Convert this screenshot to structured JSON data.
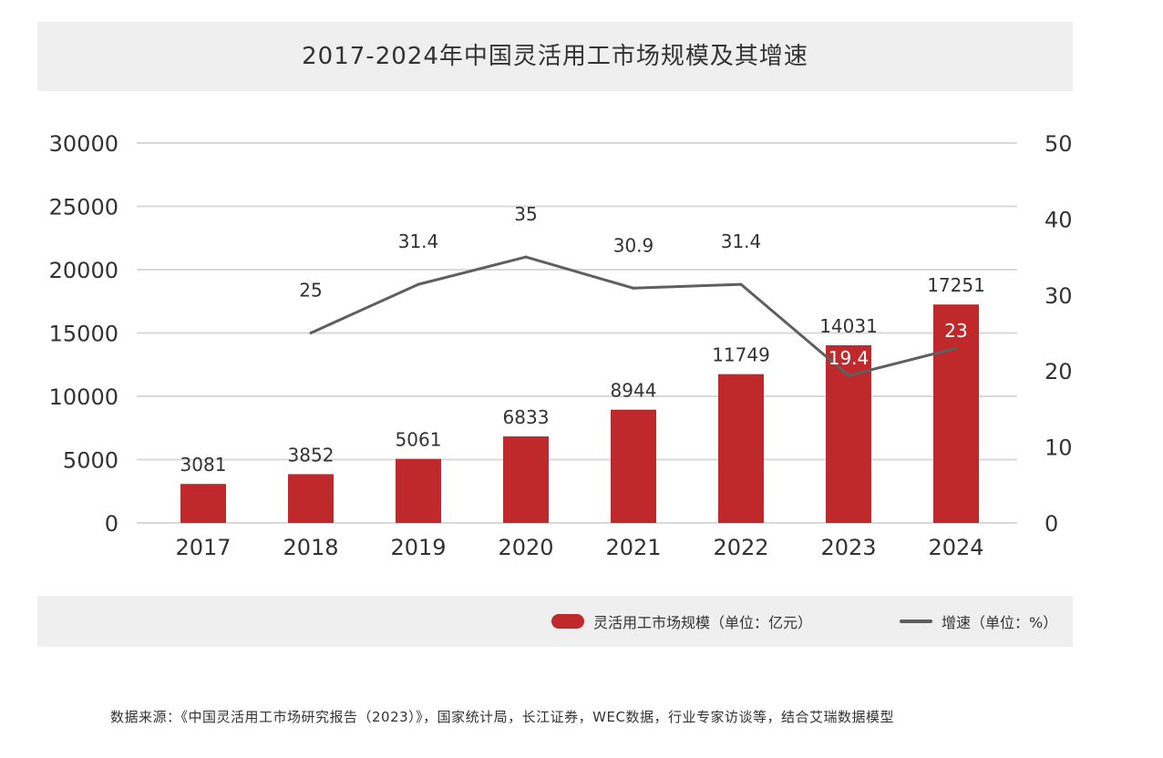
{
  "colors": {
    "bar": "#c0292b",
    "line": "#5f5f5f",
    "grid": "#d9d9d9",
    "text": "#333333",
    "header_bg": "#efefef"
  },
  "chart_data": {
    "type": "bar",
    "title": "2017-2024年中国灵活用工市场规模及其增速",
    "categories": [
      "2017",
      "2018",
      "2019",
      "2020",
      "2021",
      "2022",
      "2023",
      "2024"
    ],
    "series": [
      {
        "name": "灵活用工市场规模（单位：亿元）",
        "type": "bar",
        "axis": "left",
        "values": [
          3081,
          3852,
          5061,
          6833,
          8944,
          11749,
          14031,
          17251
        ]
      },
      {
        "name": "增速（单位：%）",
        "type": "line",
        "axis": "right",
        "values": [
          null,
          25,
          31.4,
          35,
          30.9,
          31.4,
          19.4,
          23
        ]
      }
    ],
    "bar_labels": [
      "3081",
      "3852",
      "5061",
      "6833",
      "8944",
      "11749",
      "14031",
      "17251"
    ],
    "line_labels": [
      "",
      "25",
      "31.4",
      "35",
      "30.9",
      "31.4",
      "19.4",
      "23"
    ],
    "y_left": {
      "ylim": [
        0,
        30000
      ],
      "ticks": [
        "0",
        "5000",
        "10000",
        "15000",
        "20000",
        "25000",
        "30000"
      ]
    },
    "y_right": {
      "ylim": [
        0,
        50
      ],
      "ticks": [
        "0",
        "10",
        "20",
        "30",
        "40",
        "50"
      ]
    },
    "grid": true,
    "legend": "bottom-right"
  },
  "legend": {
    "bar_label": "灵活用工市场规模（单位：亿元）",
    "line_label": "增速（单位：%）"
  },
  "source": "数据来源：《中国灵活用工市场研究报告（2023）》，国家统计局，长江证券，WEC数据，行业专家访谈等，结合艾瑞数据模型"
}
